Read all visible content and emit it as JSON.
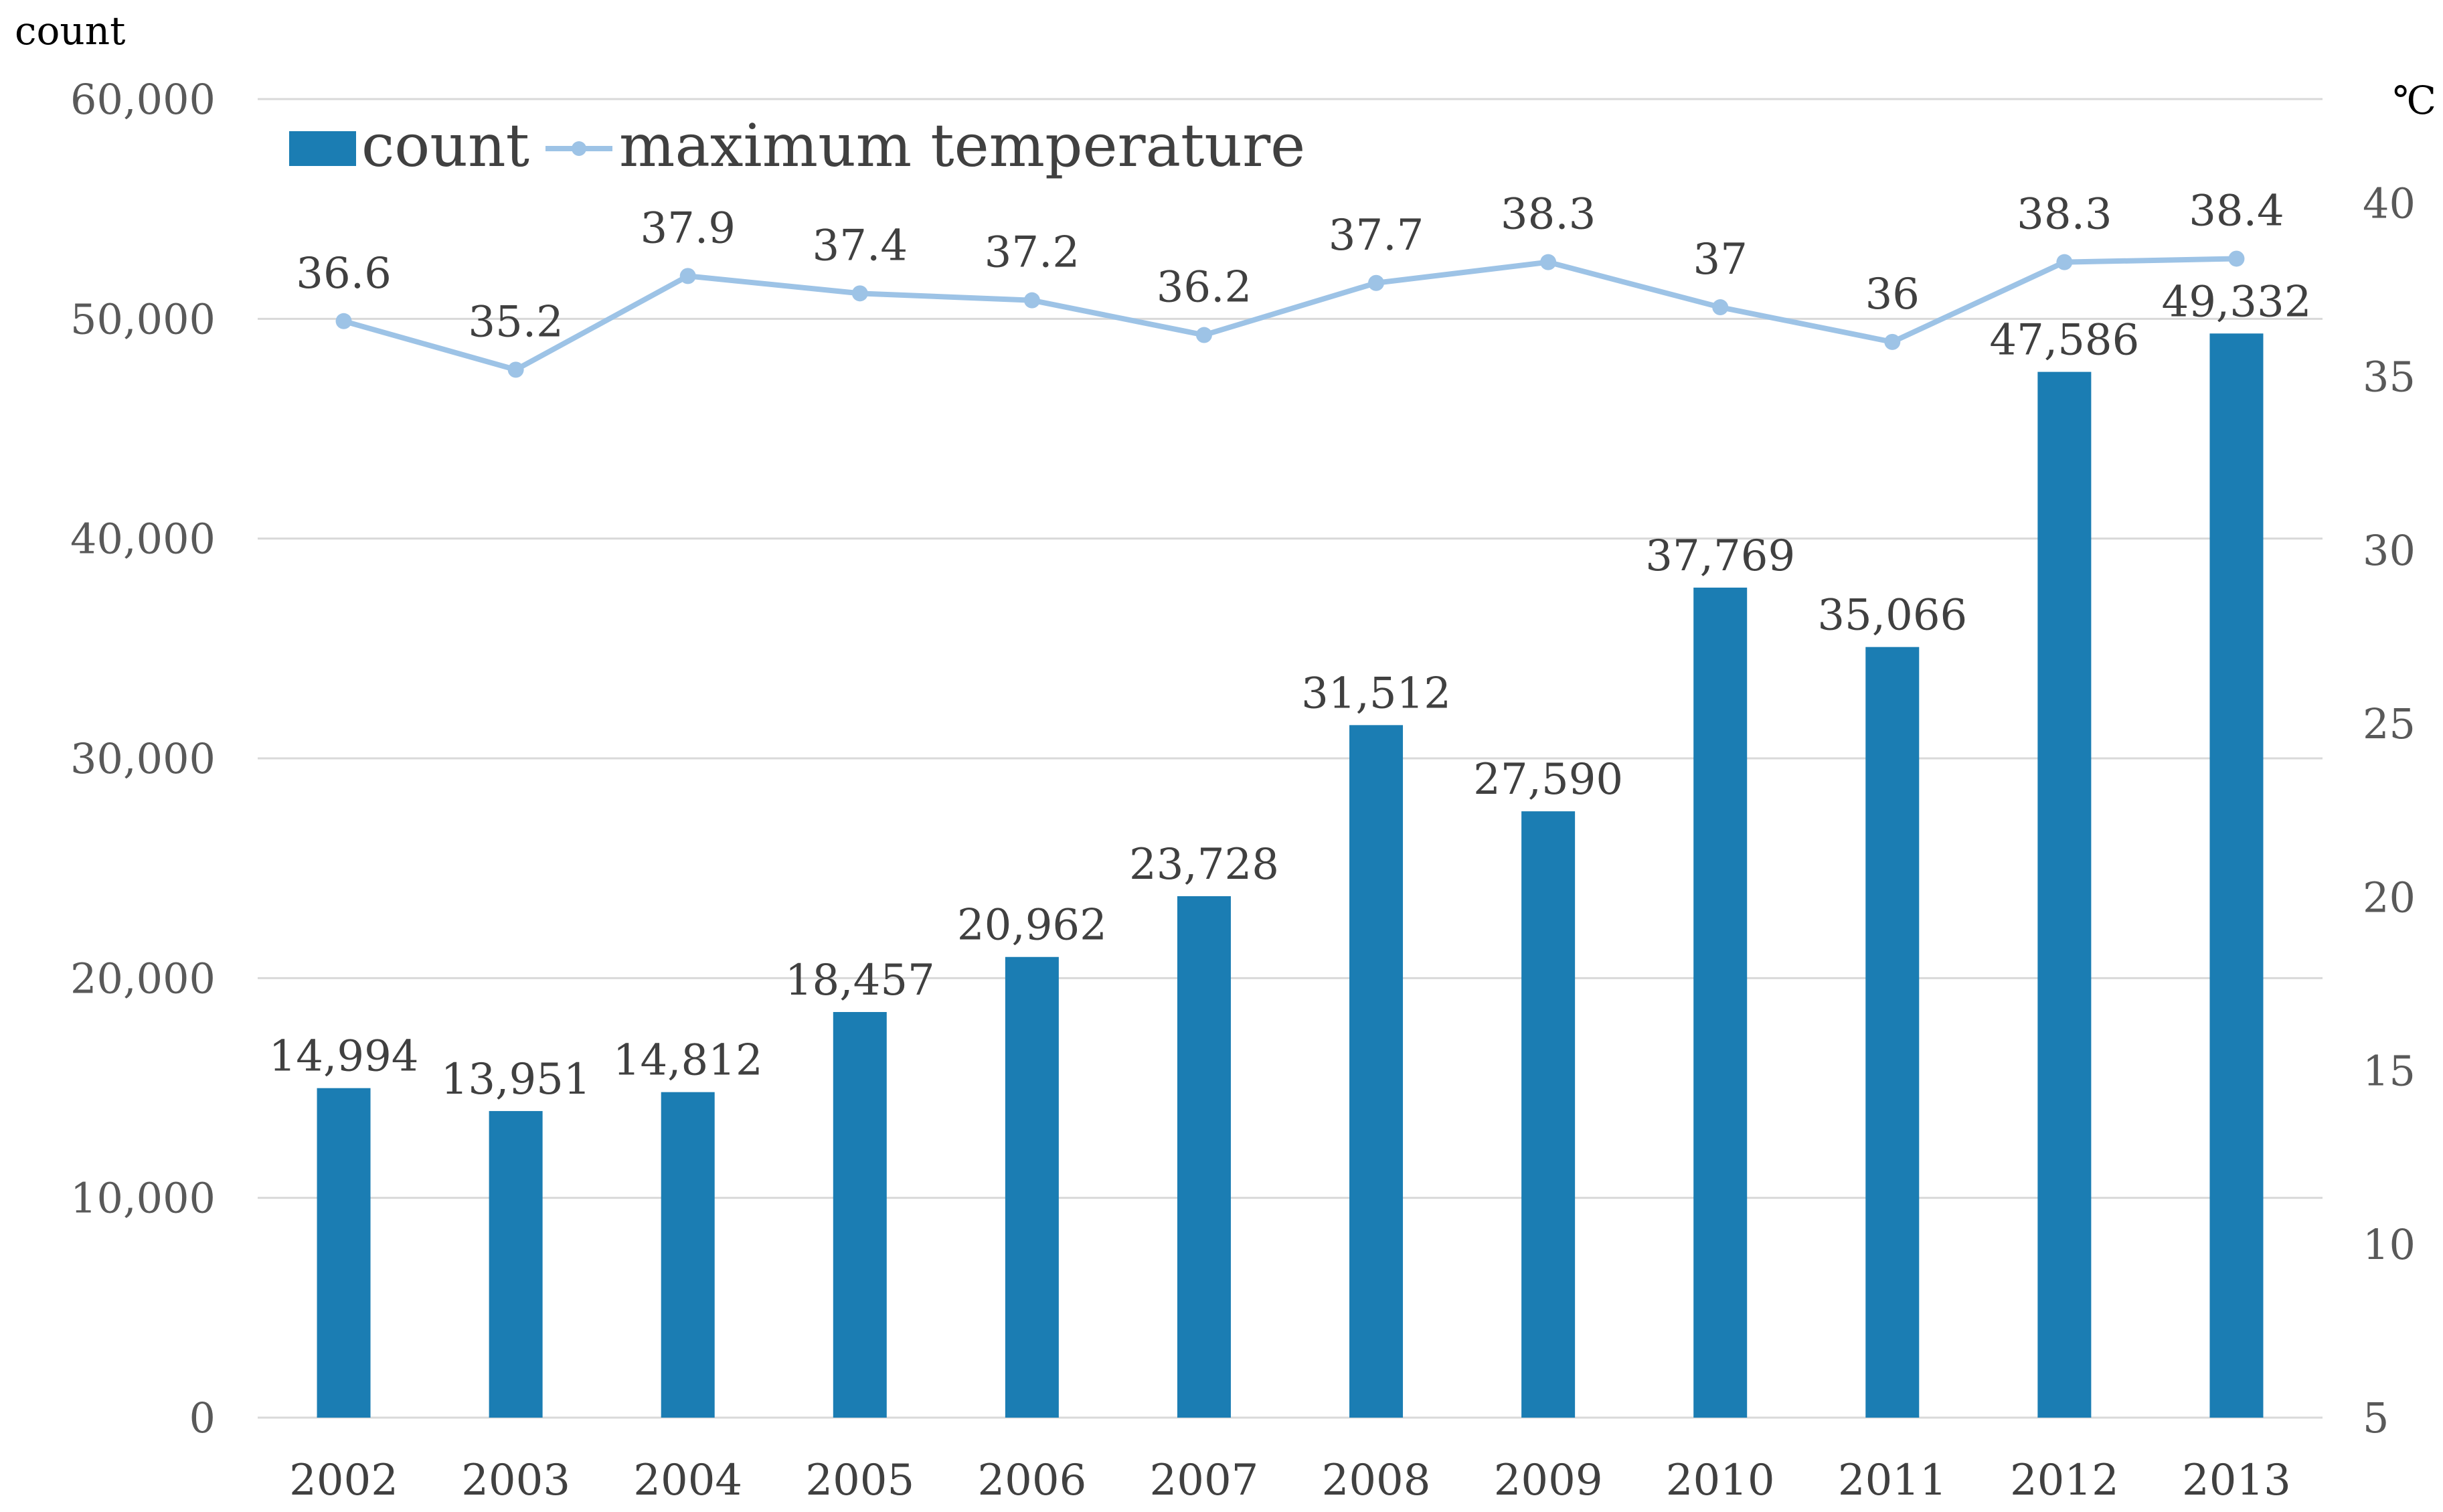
{
  "chart_data": {
    "type": "bar",
    "categories": [
      "2002",
      "2003",
      "2004",
      "2005",
      "2006",
      "2007",
      "2008",
      "2009",
      "2010",
      "2011",
      "2012",
      "2013"
    ],
    "series": [
      {
        "name": "count",
        "type": "bar",
        "axis": "left",
        "values": [
          14994,
          13951,
          14812,
          18457,
          20962,
          23728,
          31512,
          27590,
          37769,
          35066,
          47586,
          49332
        ],
        "labels": [
          "14,994",
          "13,951",
          "14,812",
          "18,457",
          "20,962",
          "23,728",
          "31,512",
          "27,590",
          "37,769",
          "35,066",
          "47,586",
          "49,332"
        ],
        "color": "#1b7db3"
      },
      {
        "name": "maximum temperature",
        "type": "line",
        "axis": "right",
        "values": [
          36.6,
          35.2,
          37.9,
          37.4,
          37.2,
          36.2,
          37.7,
          38.3,
          37,
          36,
          38.3,
          38.4
        ],
        "labels": [
          "36.6",
          "35.2",
          "37.9",
          "37.4",
          "37.2",
          "36.2",
          "37.7",
          "38.3",
          "37",
          "36",
          "38.3",
          "38.4"
        ],
        "color": "#9dc3e6"
      }
    ],
    "y_left": {
      "label": "count",
      "range": [
        0,
        60000
      ],
      "ticks": [
        0,
        10000,
        20000,
        30000,
        40000,
        50000,
        60000
      ],
      "tick_labels": [
        "0",
        "10,000",
        "20,000",
        "30,000",
        "40,000",
        "50,000",
        "60,000"
      ]
    },
    "y_right": {
      "label": "℃",
      "range": [
        5,
        43
      ],
      "ticks": [
        5,
        10,
        15,
        20,
        25,
        30,
        35,
        40
      ],
      "tick_labels": [
        "5",
        "10",
        "15",
        "20",
        "25",
        "30",
        "35",
        "40"
      ]
    },
    "grid": true,
    "legend": {
      "position": "top-left",
      "entries": [
        "count",
        "maximum temperature"
      ]
    }
  }
}
